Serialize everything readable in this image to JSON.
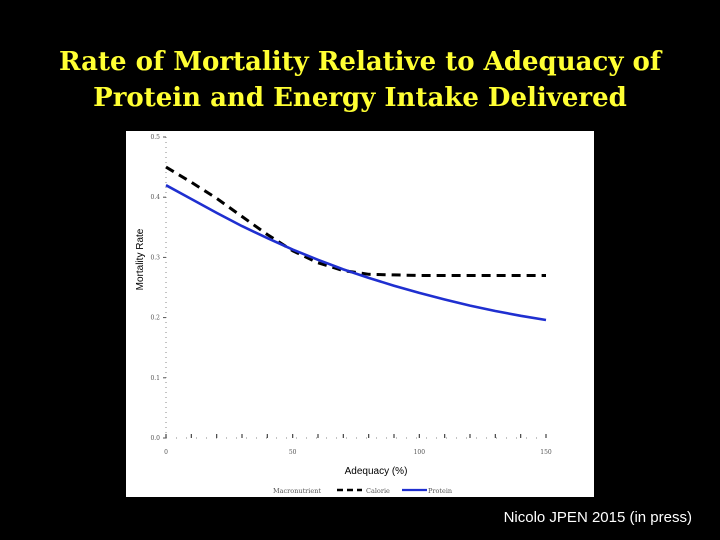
{
  "slide": {
    "title_line1": "Rate of Mortality Relative to Adequacy of",
    "title_line2": "Protein and Energy Intake Delivered",
    "citation": "Nicolo JPEN 2015 (in press)"
  },
  "chart_data": {
    "type": "line",
    "title": "",
    "xlabel": "Adequacy (%)",
    "ylabel": "Mortality Rate",
    "xlim": [
      0,
      150
    ],
    "ylim": [
      0.0,
      0.5
    ],
    "x_ticks": [
      0,
      50,
      100,
      150
    ],
    "x_tick_labels": [
      "0",
      "50",
      "100",
      "150"
    ],
    "y_ticks": [
      0.0,
      0.1,
      0.2,
      0.3,
      0.4,
      0.5
    ],
    "y_tick_labels": [
      "0.0",
      "0.1",
      "0.2",
      "0.3",
      "0.4",
      "0.5"
    ],
    "legend_title": "Macronutrient",
    "legend_position": "bottom",
    "series": [
      {
        "name": "Calorie",
        "style": "dashed",
        "color": "#000000",
        "x": [
          0,
          10,
          20,
          30,
          40,
          50,
          60,
          70,
          80,
          90,
          100,
          110,
          120,
          130,
          140,
          150
        ],
        "y": [
          0.45,
          0.425,
          0.398,
          0.368,
          0.338,
          0.311,
          0.291,
          0.278,
          0.272,
          0.271,
          0.27,
          0.27,
          0.27,
          0.27,
          0.27,
          0.27
        ]
      },
      {
        "name": "Protein",
        "style": "solid",
        "color": "#1f2fd0",
        "x": [
          0,
          10,
          20,
          30,
          40,
          50,
          60,
          70,
          80,
          90,
          100,
          110,
          120,
          130,
          140,
          150
        ],
        "y": [
          0.42,
          0.397,
          0.374,
          0.352,
          0.332,
          0.313,
          0.296,
          0.28,
          0.266,
          0.253,
          0.241,
          0.23,
          0.22,
          0.211,
          0.203,
          0.196
        ]
      }
    ]
  }
}
